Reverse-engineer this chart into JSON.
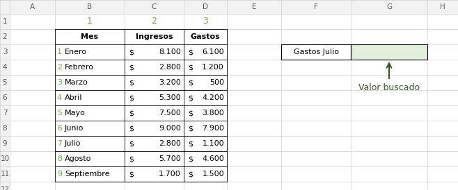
{
  "col_headers": [
    "1",
    "2",
    "3"
  ],
  "col_header_color": "#70AD47",
  "row_numbers": [
    "1",
    "2",
    "3",
    "4",
    "5",
    "6",
    "7",
    "8",
    "9"
  ],
  "row_number_color": "#70AD47",
  "table_headers": [
    "Mes",
    "Ingresos",
    "Gastos"
  ],
  "months": [
    "Enero",
    "Febrero",
    "Marzo",
    "Abril",
    "Mayo",
    "Junio",
    "Julio",
    "Agosto",
    "Septiembre"
  ],
  "ingresos": [
    "8.100",
    "2.800",
    "3.200",
    "5.300",
    "7.500",
    "9.000",
    "2.800",
    "5.700",
    "1.700"
  ],
  "gastos": [
    "6.100",
    "1.200",
    "500",
    "4.200",
    "3.800",
    "7.900",
    "1.100",
    "4.600",
    "1.500"
  ],
  "col_letters": [
    "A",
    "B",
    "C",
    "D",
    "E",
    "F",
    "G",
    "H"
  ],
  "col_letter_color": "#595959",
  "row_letter_color": "#595959",
  "search_label": "Gastos Julio",
  "search_arrow_label": "Valor buscado",
  "arrow_color": "#375623",
  "search_cell_fill": "#E2EFDA",
  "bg_color": "#FFFFFF",
  "header_bg": "#F2F2F2",
  "header_border": "#D0D0D0",
  "grid_color": "#D0D0D0",
  "table_border_color": "#000000",
  "text_color": "#000000"
}
